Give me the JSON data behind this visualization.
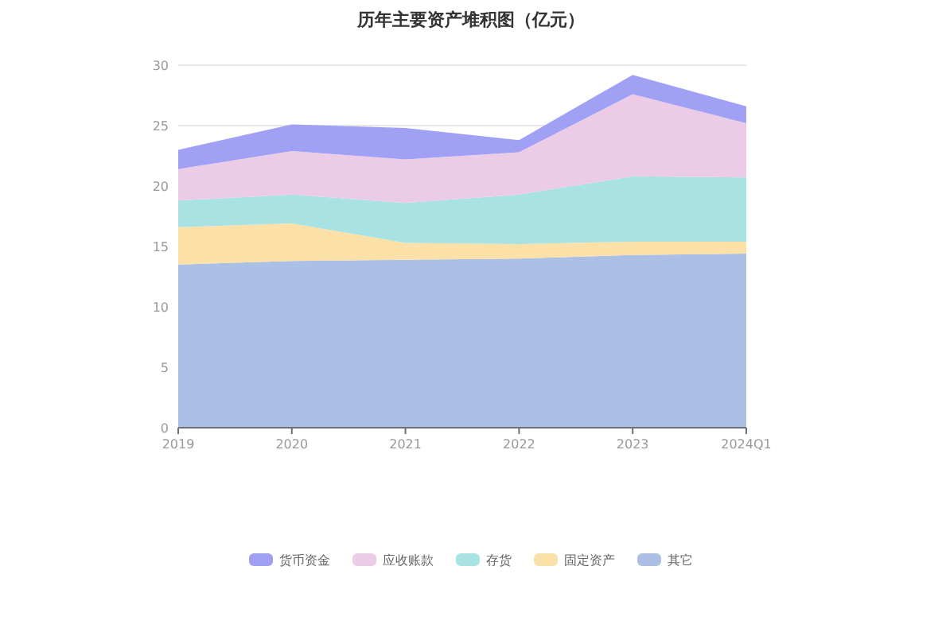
{
  "chart_data": {
    "type": "area",
    "stacked": true,
    "title": "历年主要资产堆积图（亿元）",
    "categories": [
      "2019",
      "2020",
      "2021",
      "2022",
      "2023",
      "2024Q1"
    ],
    "series": [
      {
        "name": "其它",
        "color": "#abc0e4",
        "values": [
          13.5,
          13.8,
          13.9,
          14.0,
          14.3,
          14.4
        ]
      },
      {
        "name": "固定资产",
        "color": "#fbe0a8",
        "values": [
          3.1,
          3.1,
          1.4,
          1.2,
          1.1,
          1.0
        ]
      },
      {
        "name": "存货",
        "color": "#a9e2e2",
        "values": [
          2.2,
          2.4,
          3.3,
          4.1,
          5.4,
          5.3
        ]
      },
      {
        "name": "应收账款",
        "color": "#eccbe6",
        "values": [
          2.6,
          3.6,
          3.6,
          3.5,
          6.8,
          4.5
        ]
      },
      {
        "name": "货币资金",
        "color": "#a0a0f4",
        "values": [
          1.6,
          2.2,
          2.6,
          1.0,
          1.6,
          1.4
        ]
      }
    ],
    "ylim": [
      0,
      30
    ],
    "yticks": [
      0,
      5,
      10,
      15,
      20,
      25,
      30
    ],
    "grid": "y",
    "legend": "bottom"
  }
}
